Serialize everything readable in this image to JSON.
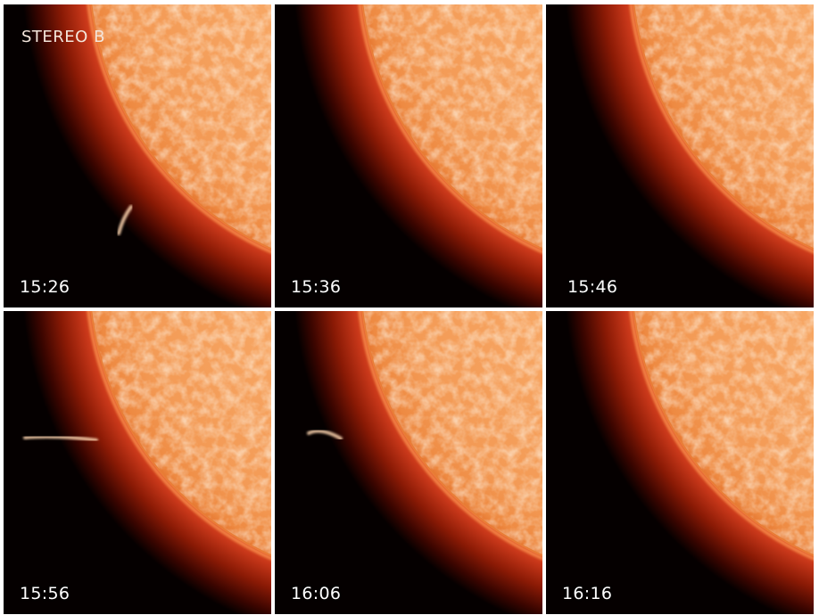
{
  "figure": {
    "spacecraft_label": "STEREO B",
    "panels": [
      {
        "time": "15:26"
      },
      {
        "time": "15:36"
      },
      {
        "time": "15:46"
      },
      {
        "time": "15:56"
      },
      {
        "time": "16:06"
      },
      {
        "time": "16:16"
      }
    ]
  },
  "colors": {
    "background": "#ffffff",
    "space": "#050000",
    "corona_inner": "#d8401a",
    "corona_outer": "#4a0800",
    "solar_disk": "#f5a060",
    "disk_bright": "#ffe4c0",
    "prominence": "#ffd6b0"
  }
}
